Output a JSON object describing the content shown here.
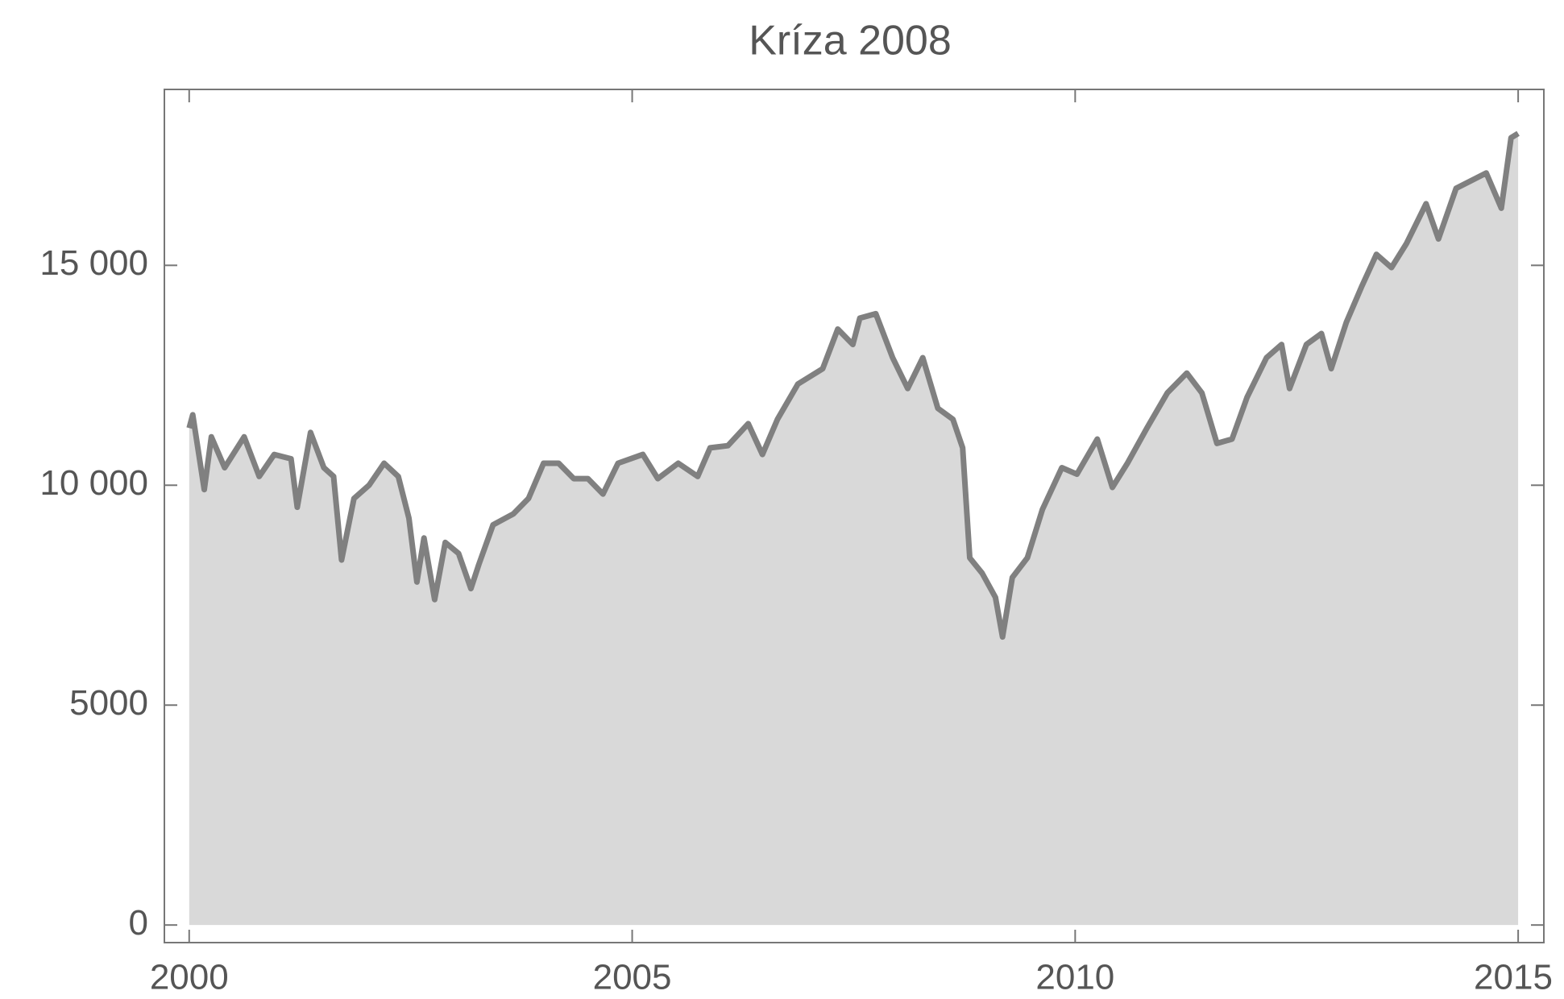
{
  "chart_data": {
    "type": "area",
    "title": "Kríza 2008",
    "x": [
      2000.0,
      2000.04,
      2000.17,
      2000.25,
      2000.4,
      2000.62,
      2000.79,
      2000.96,
      2001.15,
      2001.22,
      2001.37,
      2001.52,
      2001.63,
      2001.72,
      2001.86,
      2002.03,
      2002.2,
      2002.36,
      2002.48,
      2002.57,
      2002.65,
      2002.77,
      2002.89,
      2003.04,
      2003.18,
      2003.27,
      2003.43,
      2003.66,
      2003.83,
      2004.0,
      2004.17,
      2004.34,
      2004.5,
      2004.67,
      2004.84,
      2005.12,
      2005.29,
      2005.52,
      2005.74,
      2005.88,
      2006.08,
      2006.31,
      2006.47,
      2006.64,
      2006.87,
      2007.15,
      2007.32,
      2007.49,
      2007.57,
      2007.75,
      2007.94,
      2008.11,
      2008.28,
      2008.45,
      2008.62,
      2008.73,
      2008.81,
      2008.95,
      2009.1,
      2009.18,
      2009.29,
      2009.46,
      2009.63,
      2009.85,
      2010.02,
      2010.25,
      2010.42,
      2010.59,
      2010.81,
      2011.04,
      2011.26,
      2011.43,
      2011.6,
      2011.77,
      2011.94,
      2012.16,
      2012.33,
      2012.42,
      2012.61,
      2012.78,
      2012.89,
      2013.06,
      2013.23,
      2013.4,
      2013.57,
      2013.74,
      2013.96,
      2014.1,
      2014.3,
      2014.64,
      2014.81,
      2014.92,
      2015.0
    ],
    "values": [
      11300,
      11600,
      9900,
      11100,
      10400,
      11100,
      10200,
      10700,
      10600,
      9500,
      11200,
      10400,
      10200,
      8300,
      9700,
      10000,
      10500,
      10200,
      9250,
      7800,
      8800,
      7400,
      8700,
      8450,
      7650,
      8200,
      9100,
      9350,
      9700,
      10500,
      10500,
      10150,
      10150,
      9800,
      10500,
      10700,
      10150,
      10500,
      10200,
      10850,
      10900,
      11400,
      10700,
      11500,
      12300,
      12650,
      13550,
      13200,
      13800,
      13900,
      12900,
      12200,
      12900,
      11750,
      11500,
      10850,
      8350,
      8000,
      7450,
      6550,
      7900,
      8350,
      9450,
      10400,
      10250,
      11050,
      9950,
      10500,
      11300,
      12100,
      12550,
      12100,
      10950,
      11050,
      12000,
      12900,
      13200,
      12200,
      13200,
      13450,
      12650,
      13700,
      14500,
      15250,
      14950,
      15500,
      16400,
      15600,
      16750,
      17100,
      16300,
      17900,
      18000
    ],
    "line_color": "#808080",
    "fill_color": "#d9d9d9",
    "xlim": [
      1999.72,
      2015.29
    ],
    "xticks": [
      2000,
      2005,
      2010,
      2015
    ],
    "ylim": [
      -400,
      19000
    ],
    "yticks": [
      0,
      {
        "value": 5000,
        "label": "5000"
      },
      {
        "value": 10000,
        "label": "10 000"
      },
      {
        "value": 15000,
        "label": "15 000"
      }
    ]
  }
}
